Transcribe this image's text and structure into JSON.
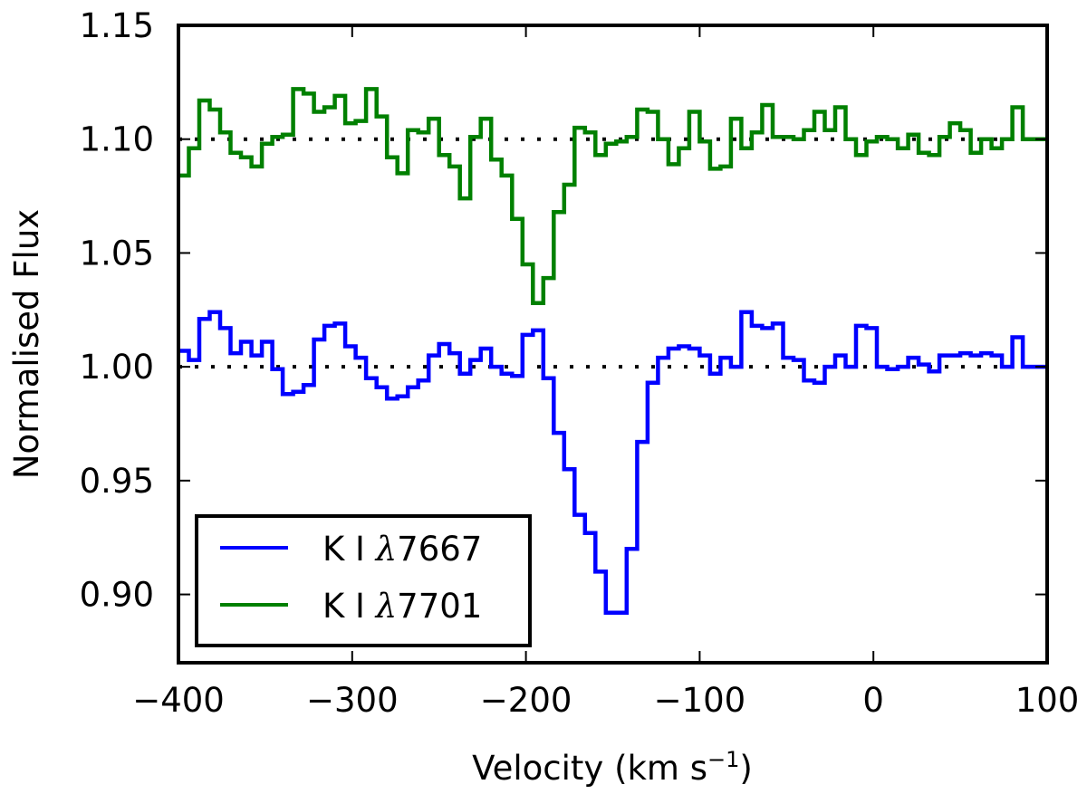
{
  "chart_data": {
    "type": "line",
    "title": "",
    "xlabel": "Velocity (km s",
    "xlabel_sup": "−1",
    "xlabel_close": ")",
    "ylabel": "Normalised Flux",
    "xlim": [
      -400,
      100
    ],
    "ylim": [
      0.87,
      1.15
    ],
    "xticks": [
      -400,
      -300,
      -200,
      -100,
      0,
      100
    ],
    "xtick_labels": [
      "−400",
      "−300",
      "−200",
      "−100",
      "0",
      "100"
    ],
    "yticks": [
      0.9,
      0.95,
      1.0,
      1.05,
      1.1,
      1.15
    ],
    "ytick_labels": [
      "0.90",
      "0.95",
      "1.00",
      "1.05",
      "1.10",
      "1.15"
    ],
    "grid": false,
    "legend_position": "bottom-left",
    "reference_lines": [
      {
        "y": 1.0,
        "style": "dotted",
        "color": "#000000"
      },
      {
        "y": 1.1,
        "style": "dotted",
        "color": "#000000"
      }
    ],
    "series": [
      {
        "name": "K I λ7667",
        "legend_prefix": "K I ",
        "legend_lambda": "λ",
        "legend_wave": "7667",
        "color": "#0000ff",
        "step": true,
        "x": [
          -400,
          -394,
          -388,
          -382,
          -376,
          -370,
          -364,
          -358,
          -352,
          -346,
          -340,
          -334,
          -328,
          -322,
          -316,
          -310,
          -304,
          -298,
          -292,
          -286,
          -280,
          -274,
          -268,
          -262,
          -256,
          -250,
          -244,
          -238,
          -232,
          -226,
          -220,
          -214,
          -208,
          -202,
          -196,
          -190,
          -184,
          -178,
          -172,
          -166,
          -160,
          -154,
          -148,
          -142,
          -136,
          -130,
          -124,
          -118,
          -112,
          -106,
          -100,
          -94,
          -88,
          -82,
          -76,
          -70,
          -64,
          -58,
          -52,
          -46,
          -40,
          -34,
          -28,
          -22,
          -16,
          -10,
          -4,
          2,
          8,
          14,
          20,
          26,
          32,
          38,
          44,
          50,
          56,
          62,
          68,
          74,
          80,
          86,
          92,
          98
        ],
        "values": [
          1.007,
          1.003,
          1.021,
          1.024,
          1.017,
          1.006,
          1.011,
          1.005,
          1.011,
          0.999,
          0.988,
          0.989,
          0.992,
          1.012,
          1.018,
          1.019,
          1.009,
          1.004,
          0.995,
          0.991,
          0.986,
          0.987,
          0.991,
          0.994,
          1.005,
          1.01,
          1.006,
          0.997,
          1.003,
          1.008,
          1.0,
          0.997,
          0.996,
          1.014,
          1.016,
          0.995,
          0.971,
          0.955,
          0.935,
          0.927,
          0.91,
          0.892,
          0.892,
          0.92,
          0.967,
          0.993,
          1.004,
          1.008,
          1.009,
          1.008,
          1.005,
          0.997,
          1.004,
          1.0,
          1.024,
          1.018,
          1.017,
          1.019,
          1.004,
          1.003,
          0.994,
          0.993,
          1.0,
          1.005,
          1.0,
          1.018,
          1.017,
          1.0,
          0.999,
          1.0,
          1.004,
          1.001,
          0.998,
          1.005,
          1.005,
          1.006,
          1.005,
          1.006,
          1.005,
          1.0,
          1.013,
          1.0,
          1.0,
          1.0
        ]
      },
      {
        "name": "K I λ7701",
        "legend_prefix": "K I ",
        "legend_lambda": "λ",
        "legend_wave": "7701",
        "color": "#008000",
        "step": true,
        "x": [
          -400,
          -394,
          -388,
          -382,
          -376,
          -370,
          -364,
          -358,
          -352,
          -346,
          -340,
          -334,
          -328,
          -322,
          -316,
          -310,
          -304,
          -298,
          -292,
          -286,
          -280,
          -274,
          -268,
          -262,
          -256,
          -250,
          -244,
          -238,
          -232,
          -226,
          -220,
          -214,
          -208,
          -202,
          -196,
          -190,
          -184,
          -178,
          -172,
          -166,
          -160,
          -154,
          -148,
          -142,
          -136,
          -130,
          -124,
          -118,
          -112,
          -106,
          -100,
          -94,
          -88,
          -82,
          -76,
          -70,
          -64,
          -58,
          -52,
          -46,
          -40,
          -34,
          -28,
          -22,
          -16,
          -10,
          -4,
          2,
          8,
          14,
          20,
          26,
          32,
          38,
          44,
          50,
          56,
          62,
          68,
          74,
          80,
          86,
          92,
          98
        ],
        "values": [
          1.084,
          1.096,
          1.117,
          1.113,
          1.103,
          1.094,
          1.092,
          1.088,
          1.098,
          1.101,
          1.102,
          1.122,
          1.12,
          1.112,
          1.114,
          1.119,
          1.107,
          1.108,
          1.122,
          1.11,
          1.092,
          1.085,
          1.104,
          1.103,
          1.109,
          1.093,
          1.088,
          1.074,
          1.101,
          1.109,
          1.091,
          1.084,
          1.065,
          1.045,
          1.028,
          1.039,
          1.068,
          1.08,
          1.105,
          1.103,
          1.093,
          1.098,
          1.099,
          1.101,
          1.113,
          1.112,
          1.1,
          1.089,
          1.096,
          1.112,
          1.099,
          1.087,
          1.088,
          1.109,
          1.096,
          1.103,
          1.115,
          1.101,
          1.101,
          1.1,
          1.104,
          1.112,
          1.104,
          1.114,
          1.1,
          1.093,
          1.099,
          1.101,
          1.1,
          1.096,
          1.102,
          1.094,
          1.093,
          1.101,
          1.107,
          1.104,
          1.094,
          1.1,
          1.096,
          1.1,
          1.114,
          1.1,
          1.1,
          1.1
        ]
      }
    ]
  }
}
